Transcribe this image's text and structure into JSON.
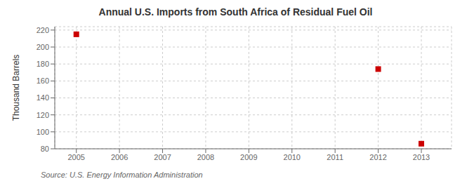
{
  "chart_data": {
    "type": "scatter",
    "title": "Annual U.S. Imports from South Africa of Residual Fuel Oil",
    "ylabel": "Thousand Barrels",
    "annotation": "Source: U.S. Energy Information Administration",
    "x": [
      2005,
      2012,
      2013
    ],
    "values": [
      215,
      174,
      86
    ],
    "color": "#cc0000",
    "marker": "square",
    "xlim": [
      2004.5,
      2013.7
    ],
    "ylim": [
      80,
      224
    ],
    "xticks": [
      2005,
      2006,
      2007,
      2008,
      2009,
      2010,
      2011,
      2012,
      2013
    ],
    "yticks": [
      80,
      100,
      120,
      140,
      160,
      180,
      200,
      220
    ],
    "grid": true
  }
}
